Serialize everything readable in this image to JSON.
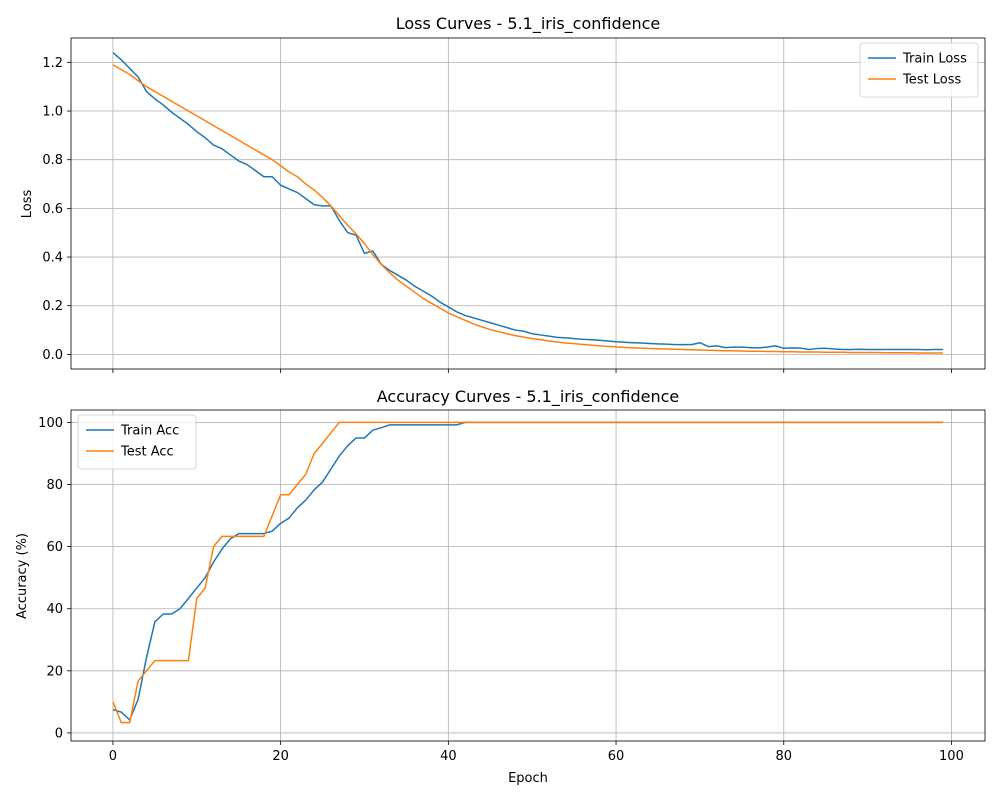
{
  "chart_data": [
    {
      "type": "line",
      "title": "Loss Curves - 5.1_iris_confidence",
      "xlabel": "",
      "ylabel": "Loss",
      "xlim": [
        -5,
        104
      ],
      "ylim": [
        -0.06,
        1.3
      ],
      "xticks": [
        0,
        20,
        40,
        60,
        80,
        100
      ],
      "xtick_labels": [
        "",
        "",
        "",
        "",
        "",
        ""
      ],
      "yticks": [
        0.0,
        0.2,
        0.4,
        0.6,
        0.8,
        1.0,
        1.2
      ],
      "ytick_labels": [
        "0.0",
        "0.2",
        "0.4",
        "0.6",
        "0.8",
        "1.0",
        "1.2"
      ],
      "grid": true,
      "legend": "top-right",
      "series": [
        {
          "name": "Train Loss",
          "color": "#1f77b4",
          "x_start": 0,
          "values": [
            1.24,
            1.21,
            1.175,
            1.14,
            1.08,
            1.05,
            1.025,
            0.995,
            0.97,
            0.945,
            0.915,
            0.89,
            0.86,
            0.845,
            0.82,
            0.795,
            0.78,
            0.755,
            0.73,
            0.73,
            0.695,
            0.68,
            0.665,
            0.64,
            0.615,
            0.61,
            0.61,
            0.55,
            0.5,
            0.49,
            0.415,
            0.425,
            0.37,
            0.345,
            0.325,
            0.305,
            0.28,
            0.26,
            0.24,
            0.215,
            0.195,
            0.175,
            0.16,
            0.15,
            0.14,
            0.13,
            0.12,
            0.11,
            0.1,
            0.095,
            0.085,
            0.08,
            0.075,
            0.07,
            0.068,
            0.065,
            0.062,
            0.06,
            0.058,
            0.055,
            0.052,
            0.05,
            0.048,
            0.047,
            0.045,
            0.043,
            0.042,
            0.04,
            0.04,
            0.04,
            0.048,
            0.032,
            0.035,
            0.028,
            0.03,
            0.03,
            0.028,
            0.027,
            0.03,
            0.035,
            0.025,
            0.027,
            0.026,
            0.02,
            0.024,
            0.025,
            0.022,
            0.02,
            0.02,
            0.021,
            0.02,
            0.02,
            0.02,
            0.02,
            0.02,
            0.02,
            0.02,
            0.019,
            0.02,
            0.02
          ]
        },
        {
          "name": "Test Loss",
          "color": "#ff7f0e",
          "x_start": 0,
          "values": [
            1.19,
            1.17,
            1.15,
            1.125,
            1.1,
            1.08,
            1.06,
            1.04,
            1.02,
            1.0,
            0.98,
            0.96,
            0.94,
            0.92,
            0.9,
            0.88,
            0.86,
            0.84,
            0.82,
            0.8,
            0.775,
            0.75,
            0.73,
            0.7,
            0.675,
            0.645,
            0.61,
            0.57,
            0.53,
            0.495,
            0.455,
            0.41,
            0.37,
            0.335,
            0.305,
            0.28,
            0.255,
            0.23,
            0.21,
            0.19,
            0.17,
            0.155,
            0.14,
            0.125,
            0.113,
            0.102,
            0.093,
            0.085,
            0.077,
            0.071,
            0.065,
            0.06,
            0.055,
            0.051,
            0.047,
            0.044,
            0.041,
            0.038,
            0.035,
            0.033,
            0.031,
            0.029,
            0.027,
            0.026,
            0.024,
            0.023,
            0.022,
            0.021,
            0.02,
            0.019,
            0.018,
            0.017,
            0.016,
            0.015,
            0.015,
            0.014,
            0.013,
            0.013,
            0.012,
            0.012,
            0.011,
            0.011,
            0.01,
            0.01,
            0.01,
            0.009,
            0.009,
            0.009,
            0.008,
            0.008,
            0.008,
            0.008,
            0.007,
            0.007,
            0.007,
            0.007,
            0.006,
            0.006,
            0.006,
            0.006
          ]
        }
      ]
    },
    {
      "type": "line",
      "title": "Accuracy Curves - 5.1_iris_confidence",
      "xlabel": "Epoch",
      "ylabel": "Accuracy (%)",
      "xlim": [
        -5,
        104
      ],
      "ylim": [
        -2.6,
        104
      ],
      "xticks": [
        0,
        20,
        40,
        60,
        80,
        100
      ],
      "xtick_labels": [
        "0",
        "20",
        "40",
        "60",
        "80",
        "100"
      ],
      "yticks": [
        0,
        20,
        40,
        60,
        80,
        100
      ],
      "ytick_labels": [
        "0",
        "20",
        "40",
        "60",
        "80",
        "100"
      ],
      "grid": true,
      "legend": "top-left",
      "series": [
        {
          "name": "Train Acc",
          "color": "#1f77b4",
          "x_start": 0,
          "values": [
            7.5,
            6.7,
            4.2,
            10.8,
            24.2,
            35.8,
            38.3,
            38.3,
            40.0,
            43.3,
            46.7,
            50.0,
            55.0,
            59.2,
            62.5,
            64.2,
            64.2,
            64.2,
            64.2,
            65.0,
            67.5,
            69.2,
            72.5,
            75.0,
            78.3,
            80.8,
            85.0,
            89.2,
            92.5,
            95.0,
            95.0,
            97.5,
            98.3,
            99.2,
            99.2,
            99.2,
            99.2,
            99.2,
            99.2,
            99.2,
            99.2,
            99.2,
            100,
            100,
            100,
            100,
            100,
            100,
            100,
            100,
            100,
            100,
            100,
            100,
            100,
            100,
            100,
            100,
            100,
            100,
            100,
            100,
            100,
            100,
            100,
            100,
            100,
            100,
            100,
            100,
            100,
            100,
            100,
            100,
            100,
            100,
            100,
            100,
            100,
            100,
            100,
            100,
            100,
            100,
            100,
            100,
            100,
            100,
            100,
            100,
            100,
            100,
            100,
            100,
            100,
            100,
            100,
            100,
            100,
            100
          ]
        },
        {
          "name": "Test Acc",
          "color": "#ff7f0e",
          "x_start": 0,
          "values": [
            10.0,
            3.3,
            3.3,
            16.7,
            20.0,
            23.3,
            23.3,
            23.3,
            23.3,
            23.3,
            43.3,
            46.7,
            60.0,
            63.3,
            63.3,
            63.3,
            63.3,
            63.3,
            63.3,
            70.0,
            76.7,
            76.7,
            80.0,
            83.3,
            90.0,
            93.3,
            96.7,
            100,
            100,
            100,
            100,
            100,
            100,
            100,
            100,
            100,
            100,
            100,
            100,
            100,
            100,
            100,
            100,
            100,
            100,
            100,
            100,
            100,
            100,
            100,
            100,
            100,
            100,
            100,
            100,
            100,
            100,
            100,
            100,
            100,
            100,
            100,
            100,
            100,
            100,
            100,
            100,
            100,
            100,
            100,
            100,
            100,
            100,
            100,
            100,
            100,
            100,
            100,
            100,
            100,
            100,
            100,
            100,
            100,
            100,
            100,
            100,
            100,
            100,
            100,
            100,
            100,
            100,
            100,
            100,
            100,
            100,
            100,
            100,
            100
          ]
        }
      ]
    }
  ]
}
